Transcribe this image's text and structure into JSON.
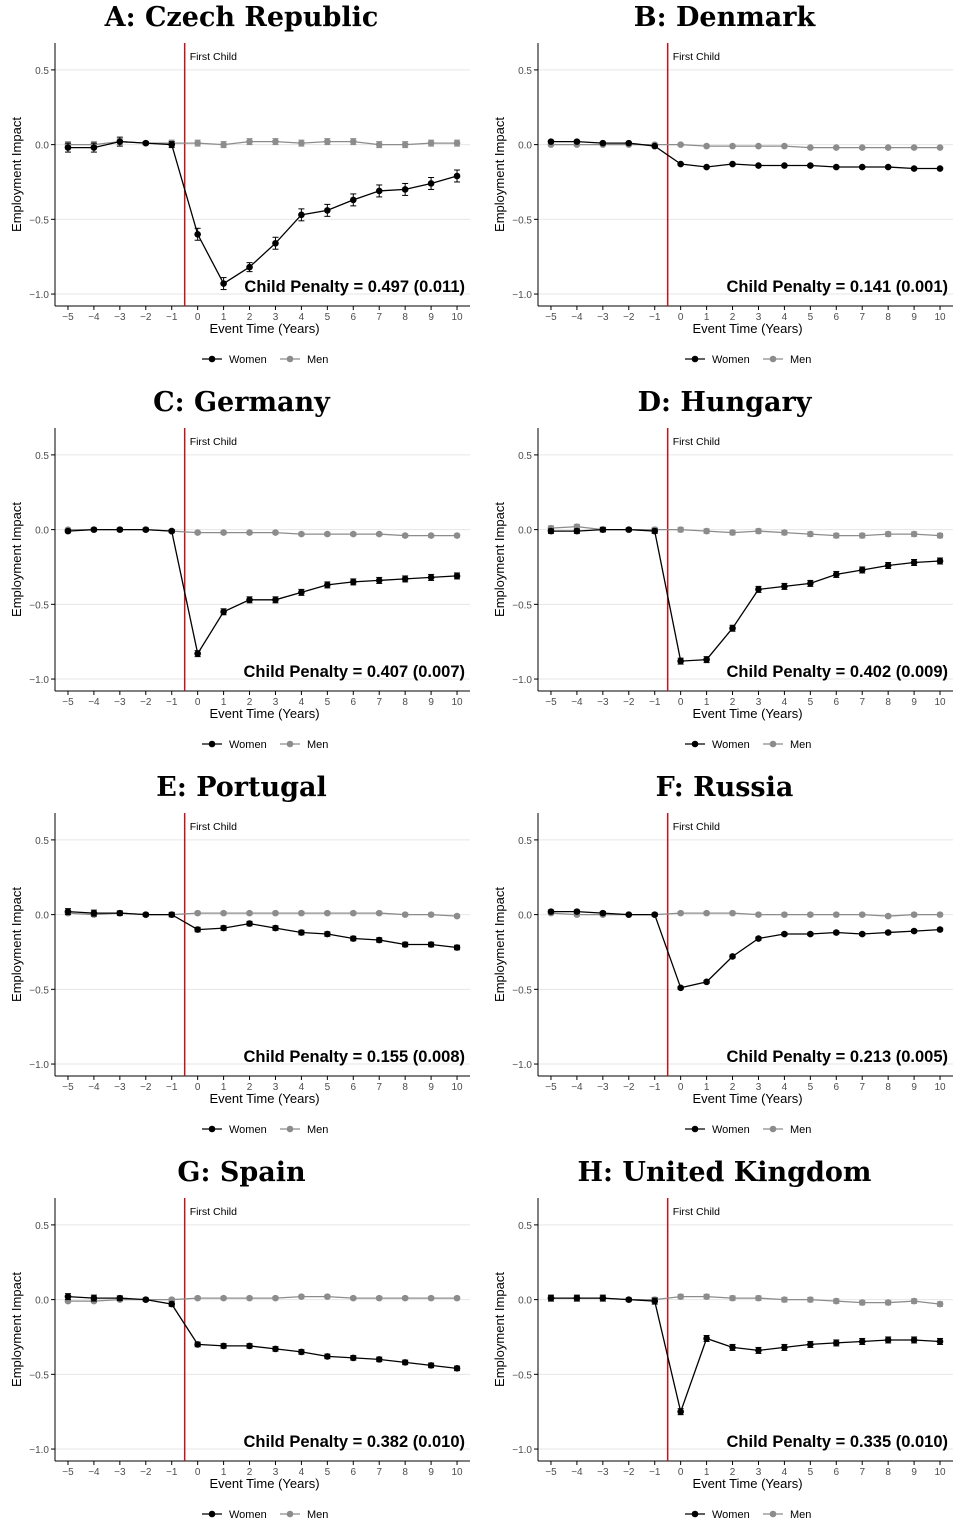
{
  "figure": {
    "event_label": "First Child",
    "xlabel": "Event Time (Years)",
    "ylabel": "Employment Impact",
    "legend": [
      "Women",
      "Men"
    ],
    "colors": {
      "women": "#000000",
      "men": "#8c8c8c",
      "event_line": "#c0151b",
      "grid": "#e6e6e6"
    }
  },
  "chart_data": [
    {
      "type": "line",
      "title": "A: Czech Republic",
      "annotation": "Child Penalty = 0.497 (0.011)",
      "xlabel": "Event Time (Years)",
      "ylabel": "Employment Impact",
      "x": [
        -5,
        -4,
        -3,
        -2,
        -1,
        0,
        1,
        2,
        3,
        4,
        5,
        6,
        7,
        8,
        9,
        10
      ],
      "xlim": [
        -5.5,
        10.5
      ],
      "ylim": [
        -1.08,
        0.68
      ],
      "yticks": [
        -1.0,
        -0.5,
        0.0,
        0.5
      ],
      "event_time": -0.5,
      "legend_position": "bottom",
      "grid": true,
      "series": [
        {
          "name": "Women",
          "values": [
            -0.02,
            -0.02,
            0.02,
            0.01,
            0.0,
            -0.6,
            -0.93,
            -0.82,
            -0.66,
            -0.47,
            -0.44,
            -0.37,
            -0.31,
            -0.3,
            -0.26,
            -0.21
          ],
          "errors": [
            0.03,
            0.03,
            0.03,
            0.01,
            0.02,
            0.04,
            0.04,
            0.03,
            0.04,
            0.04,
            0.04,
            0.04,
            0.04,
            0.04,
            0.04,
            0.04
          ]
        },
        {
          "name": "Men",
          "values": [
            0.0,
            0.0,
            0.02,
            0.01,
            0.01,
            0.01,
            0.0,
            0.02,
            0.02,
            0.01,
            0.02,
            0.02,
            0.0,
            0.0,
            0.01,
            0.01
          ],
          "errors": [
            0.02,
            0.02,
            0.02,
            0.01,
            0.02,
            0.02,
            0.02,
            0.02,
            0.02,
            0.02,
            0.02,
            0.02,
            0.02,
            0.02,
            0.02,
            0.02
          ]
        }
      ]
    },
    {
      "type": "line",
      "title": "B: Denmark",
      "annotation": "Child Penalty = 0.141 (0.001)",
      "xlabel": "Event Time (Years)",
      "ylabel": "Employment Impact",
      "x": [
        -5,
        -4,
        -3,
        -2,
        -1,
        0,
        1,
        2,
        3,
        4,
        5,
        6,
        7,
        8,
        9,
        10
      ],
      "xlim": [
        -5.5,
        10.5
      ],
      "ylim": [
        -1.08,
        0.68
      ],
      "yticks": [
        -1.0,
        -0.5,
        0.0,
        0.5
      ],
      "event_time": -0.5,
      "legend_position": "bottom",
      "grid": true,
      "series": [
        {
          "name": "Women",
          "values": [
            0.02,
            0.02,
            0.01,
            0.01,
            -0.01,
            -0.13,
            -0.15,
            -0.13,
            -0.14,
            -0.14,
            -0.14,
            -0.15,
            -0.15,
            -0.15,
            -0.16,
            -0.16
          ],
          "errors": [
            0.005,
            0.005,
            0.005,
            0.005,
            0.005,
            0.005,
            0.005,
            0.005,
            0.005,
            0.005,
            0.005,
            0.005,
            0.005,
            0.005,
            0.005,
            0.005
          ]
        },
        {
          "name": "Men",
          "values": [
            0.0,
            0.0,
            0.0,
            0.0,
            0.0,
            0.0,
            -0.01,
            -0.01,
            -0.01,
            -0.01,
            -0.02,
            -0.02,
            -0.02,
            -0.02,
            -0.02,
            -0.02
          ],
          "errors": [
            0.005,
            0.005,
            0.005,
            0.005,
            0.005,
            0.005,
            0.005,
            0.005,
            0.005,
            0.005,
            0.005,
            0.005,
            0.005,
            0.005,
            0.005,
            0.005
          ]
        }
      ]
    },
    {
      "type": "line",
      "title": "C: Germany",
      "annotation": "Child Penalty = 0.407 (0.007)",
      "xlabel": "Event Time (Years)",
      "ylabel": "Employment Impact",
      "x": [
        -5,
        -4,
        -3,
        -2,
        -1,
        0,
        1,
        2,
        3,
        4,
        5,
        6,
        7,
        8,
        9,
        10
      ],
      "xlim": [
        -5.5,
        10.5
      ],
      "ylim": [
        -1.08,
        0.68
      ],
      "yticks": [
        -1.0,
        -0.5,
        0.0,
        0.5
      ],
      "event_time": -0.5,
      "legend_position": "bottom",
      "grid": true,
      "series": [
        {
          "name": "Women",
          "values": [
            -0.01,
            0.0,
            0.0,
            0.0,
            -0.01,
            -0.83,
            -0.55,
            -0.47,
            -0.47,
            -0.42,
            -0.37,
            -0.35,
            -0.34,
            -0.33,
            -0.32,
            -0.31
          ],
          "errors": [
            0.01,
            0.01,
            0.01,
            0.01,
            0.01,
            0.02,
            0.02,
            0.02,
            0.02,
            0.02,
            0.02,
            0.02,
            0.02,
            0.02,
            0.02,
            0.02
          ]
        },
        {
          "name": "Men",
          "values": [
            0.0,
            0.0,
            0.0,
            0.0,
            -0.01,
            -0.02,
            -0.02,
            -0.02,
            -0.02,
            -0.03,
            -0.03,
            -0.03,
            -0.03,
            -0.04,
            -0.04,
            -0.04
          ],
          "errors": [
            0.01,
            0.01,
            0.01,
            0.01,
            0.01,
            0.01,
            0.01,
            0.01,
            0.01,
            0.01,
            0.01,
            0.01,
            0.01,
            0.01,
            0.01,
            0.01
          ]
        }
      ]
    },
    {
      "type": "line",
      "title": "D: Hungary",
      "annotation": "Child Penalty = 0.402 (0.009)",
      "xlabel": "Event Time (Years)",
      "ylabel": "Employment Impact",
      "x": [
        -5,
        -4,
        -3,
        -2,
        -1,
        0,
        1,
        2,
        3,
        4,
        5,
        6,
        7,
        8,
        9,
        10
      ],
      "xlim": [
        -5.5,
        10.5
      ],
      "ylim": [
        -1.08,
        0.68
      ],
      "yticks": [
        -1.0,
        -0.5,
        0.0,
        0.5
      ],
      "event_time": -0.5,
      "legend_position": "bottom",
      "grid": true,
      "series": [
        {
          "name": "Women",
          "values": [
            -0.01,
            -0.01,
            0.0,
            0.0,
            -0.01,
            -0.88,
            -0.87,
            -0.66,
            -0.4,
            -0.38,
            -0.36,
            -0.3,
            -0.27,
            -0.24,
            -0.22,
            -0.21
          ],
          "errors": [
            0.015,
            0.015,
            0.015,
            0.01,
            0.015,
            0.02,
            0.02,
            0.02,
            0.02,
            0.02,
            0.02,
            0.02,
            0.02,
            0.02,
            0.02,
            0.02
          ]
        },
        {
          "name": "Men",
          "values": [
            0.01,
            0.02,
            0.0,
            0.0,
            0.0,
            0.0,
            -0.01,
            -0.02,
            -0.01,
            -0.02,
            -0.03,
            -0.04,
            -0.04,
            -0.03,
            -0.03,
            -0.04
          ],
          "errors": [
            0.015,
            0.015,
            0.015,
            0.01,
            0.015,
            0.015,
            0.015,
            0.015,
            0.015,
            0.015,
            0.015,
            0.015,
            0.015,
            0.015,
            0.015,
            0.015
          ]
        }
      ]
    },
    {
      "type": "line",
      "title": "E: Portugal",
      "annotation": "Child Penalty = 0.155 (0.008)",
      "xlabel": "Event Time (Years)",
      "ylabel": "Employment Impact",
      "x": [
        -5,
        -4,
        -3,
        -2,
        -1,
        0,
        1,
        2,
        3,
        4,
        5,
        6,
        7,
        8,
        9,
        10
      ],
      "xlim": [
        -5.5,
        10.5
      ],
      "ylim": [
        -1.08,
        0.68
      ],
      "yticks": [
        -1.0,
        -0.5,
        0.0,
        0.5
      ],
      "event_time": -0.5,
      "legend_position": "bottom",
      "grid": true,
      "series": [
        {
          "name": "Women",
          "values": [
            0.02,
            0.01,
            0.01,
            0.0,
            0.0,
            -0.1,
            -0.09,
            -0.06,
            -0.09,
            -0.12,
            -0.13,
            -0.16,
            -0.17,
            -0.2,
            -0.2,
            -0.22
          ],
          "errors": [
            0.02,
            0.02,
            0.015,
            0.01,
            0.015,
            0.015,
            0.015,
            0.015,
            0.015,
            0.015,
            0.015,
            0.015,
            0.015,
            0.015,
            0.015,
            0.015
          ]
        },
        {
          "name": "Men",
          "values": [
            0.01,
            0.0,
            0.01,
            0.0,
            0.0,
            0.01,
            0.01,
            0.01,
            0.01,
            0.01,
            0.01,
            0.01,
            0.01,
            0.0,
            0.0,
            -0.01
          ],
          "errors": [
            0.01,
            0.01,
            0.01,
            0.01,
            0.01,
            0.01,
            0.01,
            0.01,
            0.01,
            0.01,
            0.01,
            0.01,
            0.01,
            0.01,
            0.01,
            0.01
          ]
        }
      ]
    },
    {
      "type": "line",
      "title": "F: Russia",
      "annotation": "Child Penalty = 0.213 (0.005)",
      "xlabel": "Event Time (Years)",
      "ylabel": "Employment Impact",
      "x": [
        -5,
        -4,
        -3,
        -2,
        -1,
        0,
        1,
        2,
        3,
        4,
        5,
        6,
        7,
        8,
        9,
        10
      ],
      "xlim": [
        -5.5,
        10.5
      ],
      "ylim": [
        -1.08,
        0.68
      ],
      "yticks": [
        -1.0,
        -0.5,
        0.0,
        0.5
      ],
      "event_time": -0.5,
      "legend_position": "bottom",
      "grid": true,
      "series": [
        {
          "name": "Women",
          "values": [
            0.02,
            0.02,
            0.01,
            0.0,
            0.0,
            -0.49,
            -0.45,
            -0.28,
            -0.16,
            -0.13,
            -0.13,
            -0.12,
            -0.13,
            -0.12,
            -0.11,
            -0.1
          ],
          "errors": [
            0.01,
            0.01,
            0.01,
            0.005,
            0.01,
            0.01,
            0.01,
            0.01,
            0.01,
            0.01,
            0.01,
            0.01,
            0.01,
            0.01,
            0.01,
            0.01
          ]
        },
        {
          "name": "Men",
          "values": [
            0.01,
            0.0,
            0.0,
            0.0,
            0.0,
            0.01,
            0.01,
            0.01,
            0.0,
            0.0,
            0.0,
            0.0,
            0.0,
            -0.01,
            0.0,
            0.0
          ],
          "errors": [
            0.01,
            0.01,
            0.01,
            0.005,
            0.01,
            0.01,
            0.01,
            0.01,
            0.01,
            0.01,
            0.01,
            0.01,
            0.01,
            0.01,
            0.01,
            0.01
          ]
        }
      ]
    },
    {
      "type": "line",
      "title": "G: Spain",
      "annotation": "Child Penalty = 0.382 (0.010)",
      "xlabel": "Event Time (Years)",
      "ylabel": "Employment Impact",
      "x": [
        -5,
        -4,
        -3,
        -2,
        -1,
        0,
        1,
        2,
        3,
        4,
        5,
        6,
        7,
        8,
        9,
        10
      ],
      "xlim": [
        -5.5,
        10.5
      ],
      "ylim": [
        -1.08,
        0.68
      ],
      "yticks": [
        -1.0,
        -0.5,
        0.0,
        0.5
      ],
      "event_time": -0.5,
      "legend_position": "bottom",
      "grid": true,
      "series": [
        {
          "name": "Women",
          "values": [
            0.02,
            0.01,
            0.01,
            0.0,
            -0.03,
            -0.3,
            -0.31,
            -0.31,
            -0.33,
            -0.35,
            -0.38,
            -0.39,
            -0.4,
            -0.42,
            -0.44,
            -0.46
          ],
          "errors": [
            0.02,
            0.02,
            0.015,
            0.01,
            0.015,
            0.015,
            0.015,
            0.015,
            0.015,
            0.015,
            0.015,
            0.015,
            0.015,
            0.015,
            0.015,
            0.015
          ]
        },
        {
          "name": "Men",
          "values": [
            -0.01,
            -0.01,
            0.0,
            0.0,
            0.0,
            0.01,
            0.01,
            0.01,
            0.01,
            0.02,
            0.02,
            0.01,
            0.01,
            0.01,
            0.01,
            0.01
          ],
          "errors": [
            0.01,
            0.01,
            0.01,
            0.01,
            0.01,
            0.01,
            0.01,
            0.01,
            0.01,
            0.01,
            0.01,
            0.01,
            0.01,
            0.01,
            0.01,
            0.01
          ]
        }
      ]
    },
    {
      "type": "line",
      "title": "H: United Kingdom",
      "annotation": "Child Penalty = 0.335 (0.010)",
      "xlabel": "Event Time (Years)",
      "ylabel": "Employment Impact",
      "x": [
        -5,
        -4,
        -3,
        -2,
        -1,
        0,
        1,
        2,
        3,
        4,
        5,
        6,
        7,
        8,
        9,
        10
      ],
      "xlim": [
        -5.5,
        10.5
      ],
      "ylim": [
        -1.08,
        0.68
      ],
      "yticks": [
        -1.0,
        -0.5,
        0.0,
        0.5
      ],
      "event_time": -0.5,
      "legend_position": "bottom",
      "grid": true,
      "series": [
        {
          "name": "Women",
          "values": [
            0.01,
            0.01,
            0.01,
            0.0,
            -0.01,
            -0.75,
            -0.26,
            -0.32,
            -0.34,
            -0.32,
            -0.3,
            -0.29,
            -0.28,
            -0.27,
            -0.27,
            -0.28
          ],
          "errors": [
            0.02,
            0.02,
            0.02,
            0.01,
            0.02,
            0.02,
            0.02,
            0.02,
            0.02,
            0.02,
            0.02,
            0.02,
            0.02,
            0.02,
            0.02,
            0.02
          ]
        },
        {
          "name": "Men",
          "values": [
            0.01,
            0.01,
            0.01,
            0.0,
            0.0,
            0.02,
            0.02,
            0.01,
            0.01,
            0.0,
            0.0,
            -0.01,
            -0.02,
            -0.02,
            -0.01,
            -0.03
          ],
          "errors": [
            0.015,
            0.015,
            0.015,
            0.01,
            0.015,
            0.015,
            0.015,
            0.015,
            0.015,
            0.015,
            0.015,
            0.015,
            0.015,
            0.015,
            0.015,
            0.015
          ]
        }
      ]
    }
  ]
}
